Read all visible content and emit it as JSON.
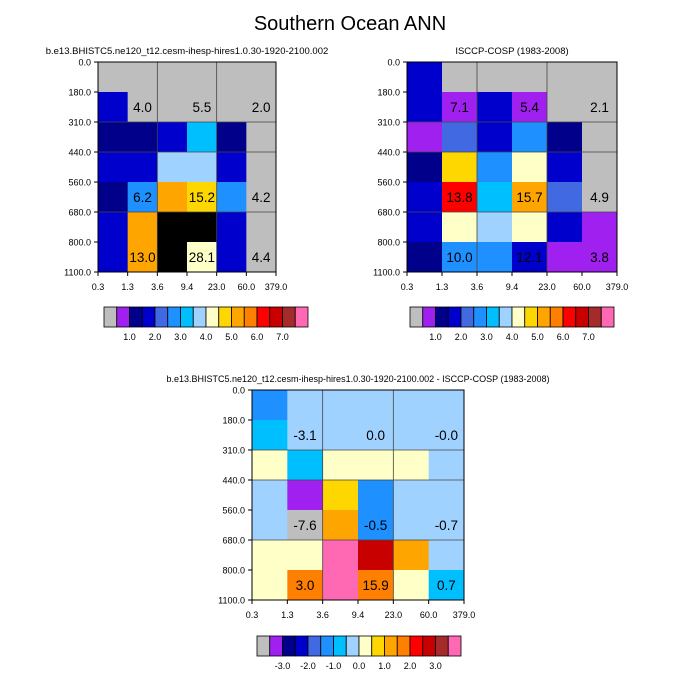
{
  "title": "Southern Ocean ANN",
  "chart_data": [
    {
      "type": "heatmap",
      "title": "b.e13.BHISTC5.ne120_t12.cesm-ihesp-hires1.0.30-1920-2100.002",
      "x_ticks": [
        "0.3",
        "1.3",
        "3.6",
        "9.4",
        "23.0",
        "60.0",
        "379.0"
      ],
      "y_ticks": [
        "0.0",
        "180.0",
        "310.0",
        "440.0",
        "560.0",
        "680.0",
        "800.0",
        "1100.0"
      ],
      "cells": [
        [
          0,
          0,
          0,
          0,
          0,
          0
        ],
        [
          3,
          0,
          0,
          0,
          0,
          0
        ],
        [
          2,
          2,
          3,
          6,
          2,
          0
        ],
        [
          3,
          3,
          7,
          7,
          3,
          0
        ],
        [
          2,
          5,
          10,
          9,
          5,
          0
        ],
        [
          3,
          10,
          17,
          16,
          3,
          0
        ],
        [
          3,
          10,
          16,
          8,
          3,
          0
        ]
      ],
      "annotations": [
        {
          "label": "4.0",
          "col": 1,
          "row": 1
        },
        {
          "label": "5.5",
          "col": 3,
          "row": 1
        },
        {
          "label": "2.0",
          "col": 5,
          "row": 1
        },
        {
          "label": "6.2",
          "col": 1,
          "row": 4
        },
        {
          "label": "15.2",
          "col": 3,
          "row": 4
        },
        {
          "label": "4.2",
          "col": 5,
          "row": 4
        },
        {
          "label": "13.0",
          "col": 1,
          "row": 6
        },
        {
          "label": "28.1",
          "col": 3,
          "row": 6
        },
        {
          "label": "4.4",
          "col": 5,
          "row": 6
        }
      ],
      "colorbar": {
        "colors": [
          "#bebebe",
          "#a020f0",
          "#00008b",
          "#0000cd",
          "#4169e1",
          "#1e90ff",
          "#00bfff",
          "#a0d2ff",
          "#ffffc8",
          "#ffd700",
          "#ffa500",
          "#ff7f00",
          "#ff0000",
          "#c80000",
          "#a52a2a",
          "#ff69b4"
        ],
        "labels": [
          "1.0",
          "2.0",
          "3.0",
          "4.0",
          "5.0",
          "6.0",
          "7.0"
        ]
      }
    },
    {
      "type": "heatmap",
      "title": "ISCCP-COSP (1983-2008)",
      "x_ticks": [
        "0.3",
        "1.3",
        "3.6",
        "9.4",
        "23.0",
        "60.0",
        "379.0"
      ],
      "y_ticks": [
        "0.0",
        "180.0",
        "310.0",
        "440.0",
        "560.0",
        "680.0",
        "800.0",
        "1100.0"
      ],
      "cells": [
        [
          3,
          0,
          0,
          0,
          0,
          0
        ],
        [
          3,
          1,
          3,
          1,
          0,
          0
        ],
        [
          1,
          4,
          3,
          5,
          2,
          0
        ],
        [
          2,
          9,
          5,
          8,
          3,
          0
        ],
        [
          3,
          12,
          6,
          10,
          4,
          0
        ],
        [
          3,
          8,
          7,
          8,
          3,
          1
        ],
        [
          2,
          5,
          5,
          3,
          1,
          1
        ]
      ],
      "annotations": [
        {
          "label": "7.1",
          "col": 1,
          "row": 1
        },
        {
          "label": "5.4",
          "col": 3,
          "row": 1
        },
        {
          "label": "2.1",
          "col": 5,
          "row": 1
        },
        {
          "label": "13.8",
          "col": 1,
          "row": 4
        },
        {
          "label": "15.7",
          "col": 3,
          "row": 4
        },
        {
          "label": "4.9",
          "col": 5,
          "row": 4
        },
        {
          "label": "10.0",
          "col": 1,
          "row": 6
        },
        {
          "label": "12.1",
          "col": 3,
          "row": 6
        },
        {
          "label": "3.8",
          "col": 5,
          "row": 6
        }
      ],
      "colorbar": {
        "colors": [
          "#bebebe",
          "#a020f0",
          "#00008b",
          "#0000cd",
          "#4169e1",
          "#1e90ff",
          "#00bfff",
          "#a0d2ff",
          "#ffffc8",
          "#ffd700",
          "#ffa500",
          "#ff7f00",
          "#ff0000",
          "#c80000",
          "#a52a2a",
          "#ff69b4"
        ],
        "labels": [
          "1.0",
          "2.0",
          "3.0",
          "4.0",
          "5.0",
          "6.0",
          "7.0"
        ]
      }
    },
    {
      "type": "heatmap",
      "title": "b.e13.BHISTC5.ne120_t12.cesm-ihesp-hires1.0.30-1920-2100.002 - ISCCP-COSP (1983-2008)",
      "x_ticks": [
        "0.3",
        "1.3",
        "3.6",
        "9.4",
        "23.0",
        "60.0",
        "379.0"
      ],
      "y_ticks": [
        "0.0",
        "180.0",
        "310.0",
        "440.0",
        "560.0",
        "680.0",
        "800.0",
        "1100.0"
      ],
      "cells": [
        [
          5,
          7,
          7,
          7,
          7,
          7
        ],
        [
          6,
          7,
          7,
          7,
          7,
          7
        ],
        [
          8,
          6,
          8,
          8,
          8,
          7
        ],
        [
          7,
          1,
          9,
          5,
          7,
          7
        ],
        [
          7,
          0,
          10,
          5,
          7,
          7
        ],
        [
          8,
          8,
          15,
          13,
          10,
          7
        ],
        [
          8,
          11,
          15,
          11,
          8,
          6
        ]
      ],
      "annotations": [
        {
          "label": "-3.1",
          "col": 1,
          "row": 1
        },
        {
          "label": "0.0",
          "col": 3,
          "row": 1
        },
        {
          "label": "-0.0",
          "col": 5,
          "row": 1
        },
        {
          "label": "-7.6",
          "col": 1,
          "row": 4
        },
        {
          "label": "-0.5",
          "col": 3,
          "row": 4
        },
        {
          "label": "-0.7",
          "col": 5,
          "row": 4
        },
        {
          "label": "3.0",
          "col": 1,
          "row": 6
        },
        {
          "label": "15.9",
          "col": 3,
          "row": 6
        },
        {
          "label": "0.7",
          "col": 5,
          "row": 6
        }
      ],
      "colorbar": {
        "colors": [
          "#bebebe",
          "#a020f0",
          "#00008b",
          "#0000cd",
          "#4169e1",
          "#1e90ff",
          "#00bfff",
          "#a0d2ff",
          "#ffffc8",
          "#ffd700",
          "#ffa500",
          "#ff7f00",
          "#ff0000",
          "#c80000",
          "#a52a2a",
          "#ff69b4"
        ],
        "labels": [
          "-3.0",
          "-2.0",
          "-1.0",
          "0.0",
          "1.0",
          "2.0",
          "3.0"
        ]
      }
    }
  ]
}
